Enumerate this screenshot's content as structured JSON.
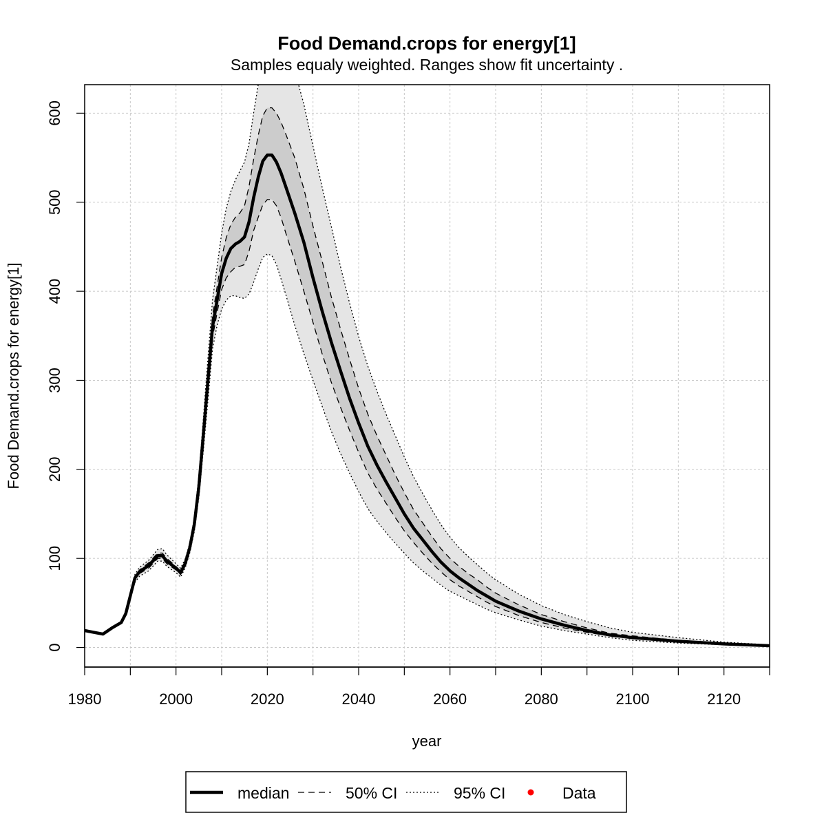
{
  "chart_data": {
    "type": "line",
    "title": "Food Demand.crops for energy[1]",
    "subtitle": "Samples equaly weighted. Ranges show  fit uncertainty .",
    "xlabel": "year",
    "ylabel": "Food Demand.crops for energy[1]",
    "xlim": [
      1980,
      2130
    ],
    "ylim": [
      -22,
      632
    ],
    "x_ticks": [
      1980,
      2000,
      2020,
      2040,
      2060,
      2080,
      2100,
      2120
    ],
    "y_ticks": [
      0,
      100,
      200,
      300,
      400,
      500,
      600
    ],
    "grid": true,
    "x": [
      1980,
      1982,
      1984,
      1986,
      1988,
      1989,
      1990,
      1991,
      1992,
      1994,
      1996,
      1997,
      1998,
      2000,
      2001,
      2002,
      2003,
      2004,
      2005,
      2006,
      2007,
      2008,
      2009,
      2010,
      2011,
      2012,
      2013,
      2014,
      2015,
      2016,
      2017,
      2018,
      2019,
      2020,
      2021,
      2022,
      2023,
      2024,
      2026,
      2028,
      2030,
      2032,
      2034,
      2036,
      2038,
      2040,
      2042,
      2044,
      2046,
      2048,
      2050,
      2052,
      2054,
      2056,
      2058,
      2060,
      2062,
      2064,
      2066,
      2068,
      2070,
      2075,
      2080,
      2085,
      2090,
      2095,
      2100,
      2110,
      2120,
      2130
    ],
    "series": [
      {
        "name": "median",
        "values": [
          19,
          17,
          15,
          22,
          28,
          38,
          58,
          78,
          85,
          92,
          103,
          103,
          97,
          89,
          84,
          94,
          112,
          138,
          180,
          240,
          300,
          360,
          390,
          420,
          437,
          448,
          453,
          456,
          461,
          478,
          505,
          528,
          546,
          553,
          553,
          545,
          533,
          518,
          488,
          455,
          415,
          378,
          343,
          311,
          280,
          252,
          226,
          205,
          186,
          168,
          150,
          134,
          121,
          108,
          96,
          86,
          78,
          71,
          64,
          58,
          52,
          41,
          32,
          25,
          19,
          14,
          11,
          7,
          4,
          2
        ]
      },
      {
        "name": "50% CI upper",
        "values": [
          19,
          17,
          15,
          22,
          28,
          38,
          58,
          80,
          87,
          95,
          106,
          106,
          100,
          91,
          86,
          96,
          114,
          141,
          185,
          248,
          310,
          372,
          405,
          438,
          460,
          475,
          483,
          488,
          496,
          518,
          548,
          575,
          597,
          606,
          606,
          600,
          590,
          577,
          550,
          515,
          473,
          434,
          394,
          358,
          324,
          291,
          262,
          238,
          216,
          194,
          174,
          155,
          140,
          125,
          111,
          100,
          91,
          83,
          76,
          68,
          61,
          48,
          37,
          29,
          22,
          16,
          13,
          8,
          5,
          2
        ]
      },
      {
        "name": "50% CI lower",
        "values": [
          19,
          17,
          15,
          22,
          28,
          38,
          58,
          76,
          83,
          89,
          100,
          100,
          94,
          87,
          82,
          92,
          110,
          135,
          175,
          232,
          290,
          348,
          376,
          402,
          415,
          422,
          427,
          428,
          430,
          445,
          468,
          483,
          497,
          503,
          503,
          496,
          483,
          466,
          434,
          400,
          365,
          330,
          298,
          270,
          244,
          219,
          196,
          178,
          162,
          146,
          131,
          118,
          106,
          95,
          85,
          76,
          69,
          63,
          57,
          51,
          46,
          36,
          28,
          22,
          17,
          13,
          10,
          6,
          4,
          2
        ]
      },
      {
        "name": "95% CI upper",
        "values": [
          19,
          17,
          15,
          22,
          28,
          38,
          58,
          82,
          90,
          98,
          110,
          111,
          104,
          94,
          89,
          99,
          117,
          145,
          192,
          258,
          325,
          390,
          428,
          465,
          493,
          512,
          525,
          535,
          545,
          566,
          600,
          632,
          660,
          680,
          690,
          690,
          682,
          672,
          648,
          610,
          563,
          517,
          473,
          428,
          387,
          349,
          316,
          288,
          262,
          238,
          214,
          192,
          173,
          155,
          138,
          124,
          112,
          102,
          93,
          84,
          76,
          60,
          47,
          37,
          29,
          22,
          17,
          11,
          6,
          3
        ]
      },
      {
        "name": "95% CI lower",
        "values": [
          19,
          17,
          15,
          22,
          28,
          38,
          58,
          73,
          80,
          86,
          97,
          97,
          91,
          84,
          79,
          89,
          106,
          130,
          168,
          222,
          278,
          335,
          362,
          380,
          390,
          395,
          395,
          393,
          392,
          397,
          410,
          425,
          438,
          442,
          440,
          430,
          414,
          397,
          362,
          330,
          300,
          271,
          243,
          218,
          196,
          175,
          156,
          142,
          129,
          117,
          106,
          95,
          86,
          78,
          70,
          63,
          58,
          53,
          48,
          43,
          39,
          31,
          24,
          19,
          15,
          11,
          8,
          5,
          3,
          1
        ]
      }
    ],
    "legend": {
      "position": "bottom",
      "entries": [
        "median",
        "50% CI",
        "95% CI",
        "Data"
      ]
    },
    "colors": {
      "median": "#000000",
      "band95": "#e5e5e5",
      "band50": "#cccccc",
      "data": "#ff0000",
      "grid": "#c8c8c8"
    }
  }
}
